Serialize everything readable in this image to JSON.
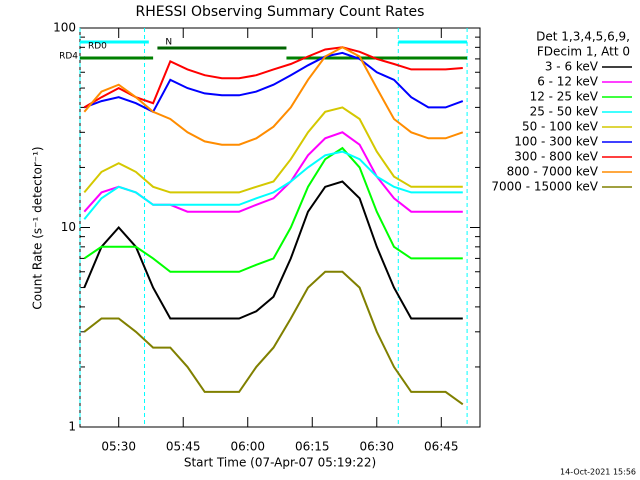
{
  "chart_data": {
    "type": "line",
    "title": "RHESSI Observing Summary Count Rates",
    "xlabel": "Start Time (07-Apr-07 05:19:22)",
    "ylabel": "Count Rate (s⁻¹ detector⁻¹)",
    "legend_header": [
      "Det 1,3,4,5,6,9,",
      "FDecim 1, Att 0"
    ],
    "footer": "14-Oct-2021 15:56",
    "log_y": true,
    "xlim": [
      "05:21",
      "06:54"
    ],
    "xticks": [
      "05:30",
      "05:45",
      "06:00",
      "06:15",
      "06:30",
      "06:45"
    ],
    "ylim": [
      1,
      100
    ],
    "yticks": [
      1,
      10,
      100
    ],
    "yminor_ticks": [
      2,
      3,
      4,
      5,
      6,
      7,
      8,
      9,
      20,
      30,
      40,
      50,
      60,
      70,
      80,
      90
    ],
    "night_lines": [
      "05:21",
      "05:36",
      "06:35",
      "06:51"
    ],
    "state_bars": [
      {
        "label": "RD0",
        "color": "#00ffff",
        "segments": [
          [
            "05:21",
            "05:37"
          ],
          [
            "06:35",
            "06:51"
          ]
        ]
      },
      {
        "label": "N",
        "color": "#006400",
        "segments": [
          [
            "05:39",
            "06:09"
          ]
        ]
      },
      {
        "label": "RD4",
        "color": "#008000",
        "segments": [
          [
            "05:21",
            "05:38"
          ],
          [
            "06:09",
            "06:51"
          ]
        ]
      }
    ],
    "x": [
      "05:22",
      "05:26",
      "05:30",
      "05:34",
      "05:38",
      "05:42",
      "05:46",
      "05:50",
      "05:54",
      "05:58",
      "06:02",
      "06:06",
      "06:10",
      "06:14",
      "06:18",
      "06:22",
      "06:26",
      "06:30",
      "06:34",
      "06:38",
      "06:42",
      "06:46",
      "06:50"
    ],
    "series": [
      {
        "name": "3 - 6 keV",
        "color": "#000000",
        "values": [
          5,
          8,
          10,
          8,
          5,
          3.5,
          3.5,
          3.5,
          3.5,
          3.5,
          3.8,
          4.5,
          7,
          12,
          16,
          17,
          14,
          8,
          5,
          3.5,
          3.5,
          3.5,
          3.5
        ]
      },
      {
        "name": "6 - 12 keV",
        "color": "#ff00ff",
        "values": [
          12,
          15,
          16,
          15,
          13,
          13,
          12,
          12,
          12,
          12,
          13,
          14,
          17,
          23,
          28,
          30,
          26,
          18,
          14,
          12,
          12,
          12,
          12
        ]
      },
      {
        "name": "12 - 25 keV",
        "color": "#00ff00",
        "values": [
          7,
          8,
          8,
          8,
          7,
          6,
          6,
          6,
          6,
          6,
          6.5,
          7,
          10,
          16,
          22,
          25,
          20,
          12,
          8,
          7,
          7,
          7,
          7
        ]
      },
      {
        "name": "25 - 50 keV",
        "color": "#00ffff",
        "values": [
          11,
          14,
          16,
          15,
          13,
          13,
          13,
          13,
          13,
          13,
          14,
          15,
          17,
          20,
          23,
          24,
          22,
          18,
          16,
          15,
          15,
          15,
          15
        ]
      },
      {
        "name": "50 - 100 keV",
        "color": "#d4c800",
        "values": [
          15,
          19,
          21,
          19,
          16,
          15,
          15,
          15,
          15,
          15,
          16,
          17,
          22,
          30,
          38,
          40,
          35,
          24,
          18,
          16,
          16,
          16,
          16
        ]
      },
      {
        "name": "100 - 300 keV",
        "color": "#0000ff",
        "values": [
          40,
          43,
          45,
          42,
          38,
          55,
          50,
          47,
          46,
          46,
          48,
          52,
          58,
          65,
          72,
          75,
          70,
          60,
          55,
          45,
          40,
          40,
          43
        ]
      },
      {
        "name": "300 - 800 keV",
        "color": "#ff0000",
        "values": [
          40,
          45,
          50,
          45,
          42,
          68,
          62,
          58,
          56,
          56,
          58,
          62,
          66,
          72,
          78,
          80,
          76,
          70,
          66,
          62,
          62,
          62,
          63
        ]
      },
      {
        "name": "800 - 7000 keV",
        "color": "#ff8c00",
        "values": [
          38,
          48,
          52,
          45,
          38,
          35,
          30,
          27,
          26,
          26,
          28,
          32,
          40,
          55,
          72,
          80,
          72,
          50,
          35,
          30,
          28,
          28,
          30
        ]
      },
      {
        "name": "7000 - 15000 keV",
        "color": "#808000",
        "values": [
          3,
          3.5,
          3.5,
          3,
          2.5,
          2.5,
          2,
          1.5,
          1.5,
          1.5,
          2,
          2.5,
          3.5,
          5,
          6,
          6,
          5,
          3,
          2,
          1.5,
          1.5,
          1.5,
          1.3
        ]
      }
    ]
  }
}
